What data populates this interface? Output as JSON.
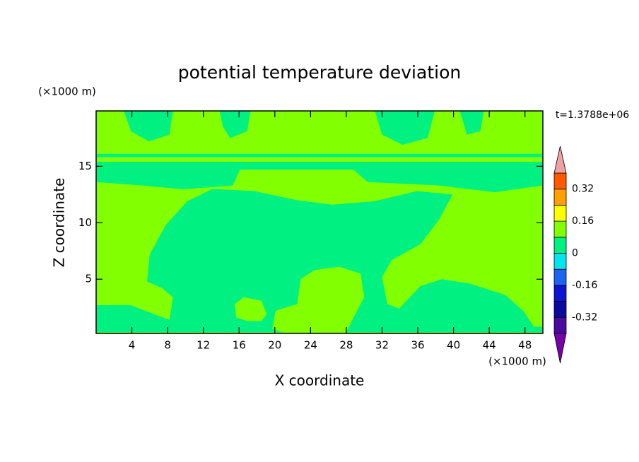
{
  "chart_data": {
    "type": "contour",
    "title": "potential temperature deviation",
    "x_label": "X coordinate",
    "y_label": "Z coordinate",
    "x_unit": "(×1000 m)",
    "y_unit": "(×1000 m)",
    "time_label": "t=1.3788e+06",
    "xlim": [
      0,
      50
    ],
    "ylim": [
      0.2,
      19.9
    ],
    "xticks": [
      4,
      8,
      12,
      16,
      20,
      24,
      28,
      32,
      36,
      40,
      44,
      48
    ],
    "yticks": [
      5,
      10,
      15
    ],
    "levels": [
      -0.4,
      -0.32,
      -0.24,
      -0.16,
      -0.08,
      0,
      0.08,
      0.16,
      0.24,
      0.32,
      0.4
    ],
    "colors": [
      "#4a0aa0",
      "#0a0aa0",
      "#0a14d2",
      "#1e64f0",
      "#00e6f0",
      "#00f082",
      "#82ff00",
      "#ffff00",
      "#ffa000",
      "#ff5a00",
      "#ff2828"
    ],
    "extend_colors": [
      "#7800a8",
      "#f0a0a0"
    ],
    "colorbar_ticks": [
      -0.32,
      -0.16,
      0,
      0.16,
      0.32
    ],
    "background_level": 6,
    "regions": [
      {
        "level": 5,
        "points": [
          [
            5.7,
            4.8
          ],
          [
            6.0,
            7.2
          ],
          [
            7.8,
            9.8
          ],
          [
            10.2,
            11.9
          ],
          [
            13.0,
            13.0
          ],
          [
            17.7,
            12.8
          ],
          [
            22.5,
            12.0
          ],
          [
            26.4,
            11.6
          ],
          [
            31.2,
            11.9
          ],
          [
            35.9,
            12.8
          ],
          [
            39.9,
            12.5
          ],
          [
            38.4,
            10.3
          ],
          [
            36.3,
            8.1
          ],
          [
            33.1,
            6.7
          ],
          [
            32.0,
            5.2
          ],
          [
            32.6,
            2.8
          ],
          [
            33.9,
            2.4
          ],
          [
            36.3,
            4.4
          ],
          [
            38.7,
            5.0
          ],
          [
            41.9,
            4.6
          ],
          [
            45.8,
            3.6
          ],
          [
            47.8,
            2.2
          ],
          [
            49.0,
            0.8
          ],
          [
            50,
            0.8
          ],
          [
            50,
            0.3
          ],
          [
            0,
            0.3
          ],
          [
            0,
            2.7
          ],
          [
            3.9,
            2.7
          ],
          [
            5.5,
            2.2
          ],
          [
            8.2,
            1.4
          ],
          [
            8.6,
            3.4
          ],
          [
            7.4,
            4.2
          ]
        ]
      },
      {
        "level": 6,
        "points": [
          [
            15.5,
            2.8
          ],
          [
            16.5,
            3.4
          ],
          [
            18.5,
            3.1
          ],
          [
            19.1,
            1.9
          ],
          [
            18.5,
            1.3
          ],
          [
            16.9,
            1.3
          ],
          [
            15.7,
            1.6
          ]
        ]
      },
      {
        "level": 6,
        "points": [
          [
            20.1,
            2.2
          ],
          [
            22.5,
            2.8
          ],
          [
            22.9,
            5.0
          ],
          [
            24.4,
            5.8
          ],
          [
            27.2,
            6.1
          ],
          [
            29.6,
            5.5
          ],
          [
            30.0,
            3.4
          ],
          [
            28.8,
            1.6
          ],
          [
            28.0,
            0.3
          ],
          [
            20.9,
            0.3
          ],
          [
            19.7,
            0.6
          ]
        ]
      },
      {
        "level": 5,
        "points": [
          [
            0,
            16.1
          ],
          [
            50,
            16.1
          ],
          [
            50,
            15.8
          ],
          [
            0,
            15.8
          ]
        ]
      },
      {
        "level": 5,
        "points": [
          [
            0,
            15.4
          ],
          [
            50,
            15.4
          ],
          [
            50,
            14.7
          ],
          [
            0,
            14.7
          ]
        ]
      },
      {
        "level": 5,
        "points": [
          [
            0,
            14.7
          ],
          [
            16.1,
            14.7
          ],
          [
            15.3,
            13.3
          ],
          [
            9.8,
            12.95
          ],
          [
            5.1,
            13.3
          ],
          [
            0,
            13.6
          ]
        ]
      },
      {
        "level": 5,
        "points": [
          [
            28.8,
            14.7
          ],
          [
            50,
            14.7
          ],
          [
            50,
            13.3
          ],
          [
            44.6,
            12.7
          ],
          [
            38.3,
            13.3
          ],
          [
            30.4,
            13.6
          ]
        ]
      },
      {
        "level": 5,
        "points": [
          [
            3.1,
            19.9
          ],
          [
            8.6,
            19.9
          ],
          [
            8.2,
            17.8
          ],
          [
            5.9,
            17.2
          ],
          [
            3.9,
            18.1
          ]
        ]
      },
      {
        "level": 5,
        "points": [
          [
            13.8,
            19.9
          ],
          [
            17.3,
            19.9
          ],
          [
            16.9,
            18.1
          ],
          [
            15.0,
            17.5
          ],
          [
            14.2,
            18.5
          ]
        ]
      },
      {
        "level": 5,
        "points": [
          [
            31.2,
            19.9
          ],
          [
            37.9,
            19.9
          ],
          [
            37.1,
            17.5
          ],
          [
            34.3,
            16.9
          ],
          [
            32.0,
            17.8
          ]
        ]
      },
      {
        "level": 5,
        "points": [
          [
            40.7,
            19.9
          ],
          [
            43.4,
            19.9
          ],
          [
            43.0,
            18.1
          ],
          [
            41.5,
            17.8
          ]
        ]
      }
    ]
  }
}
